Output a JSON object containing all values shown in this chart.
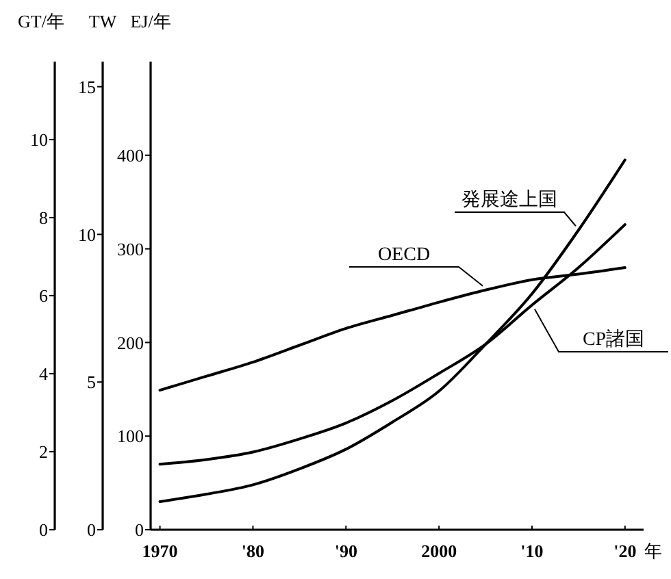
{
  "chart_data": {
    "type": "line",
    "ylabel": "EJ/年",
    "y2label": "TW",
    "y3label": "GT/年",
    "x": [
      1970,
      1975,
      1980,
      1985,
      1990,
      1995,
      2000,
      2005,
      2010,
      2015,
      2020
    ],
    "xlim": [
      1969,
      2022
    ],
    "xticks": [
      1970,
      {
        "value": 1980,
        "label": "'80"
      },
      {
        "value": 1990,
        "label": "'90"
      },
      2000,
      {
        "value": 2010,
        "label": "'10"
      },
      {
        "value": 2020,
        "label": "'20"
      }
    ],
    "xlabel": "年",
    "ylim": [
      0,
      500
    ],
    "yticks": [
      0,
      100,
      200,
      300,
      400
    ],
    "y2lim": [
      0,
      15.85
    ],
    "y2ticks": [
      0,
      5,
      10,
      15
    ],
    "y3lim": [
      0,
      12
    ],
    "y3ticks": [
      0,
      2,
      4,
      6,
      8,
      10
    ],
    "series": [
      {
        "name": "発展途上国",
        "color": "#000000",
        "values": [
          30,
          38,
          48,
          65,
          86,
          115,
          148,
          198,
          252,
          320,
          395
        ]
      },
      {
        "name": "OECD",
        "color": "#000000",
        "values": [
          149,
          164,
          179,
          197,
          215,
          229,
          243,
          256,
          267,
          273,
          280
        ]
      },
      {
        "name": "CP諸国",
        "color": "#000000",
        "values": [
          70,
          75,
          83,
          97,
          114,
          138,
          167,
          198,
          240,
          280,
          326
        ]
      }
    ],
    "grid": false,
    "legend": false,
    "marker": "none",
    "line_style": "solid"
  }
}
